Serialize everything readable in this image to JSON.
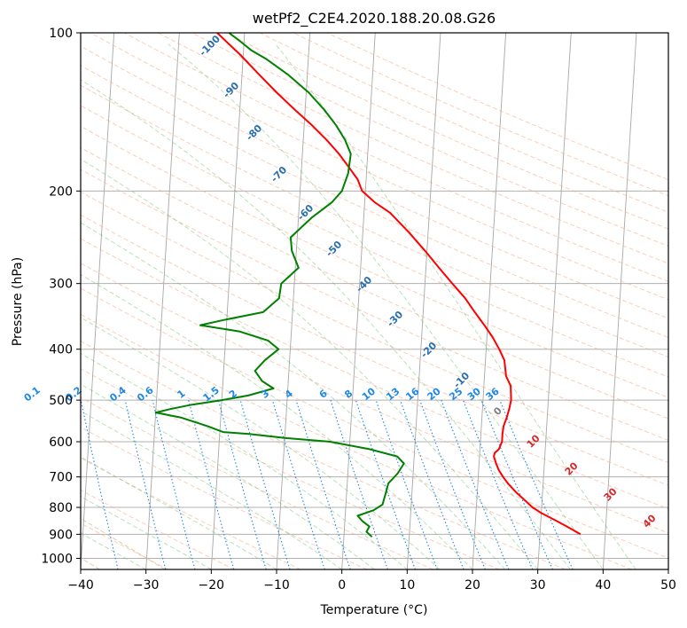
{
  "chart_data": {
    "type": "line",
    "title": "wetPf2_C2E4.2020.188.20.08.G26",
    "xlabel": "Temperature (°C)",
    "ylabel": "Pressure (hPa)",
    "xlim": [
      -40,
      50
    ],
    "ylim": [
      1050,
      100
    ],
    "y_scale": "log",
    "grid": true,
    "x_ticks": [
      -40,
      -30,
      -20,
      -10,
      0,
      10,
      20,
      30,
      40,
      50
    ],
    "y_ticks": [
      100,
      200,
      300,
      400,
      500,
      600,
      700,
      800,
      900,
      1000
    ],
    "x_tick_labels": [
      "−40",
      "−30",
      "−20",
      "−10",
      "0",
      "10",
      "20",
      "30",
      "40",
      "50"
    ],
    "y_tick_labels": [
      "100",
      "200",
      "300",
      "400",
      "500",
      "600",
      "700",
      "800",
      "900",
      "1000"
    ],
    "isotherm_labels": [
      "-100",
      "-90",
      "-80",
      "-70",
      "-60",
      "-50",
      "-40",
      "-30",
      "-20",
      "-10",
      "0",
      "10",
      "20",
      "30",
      "40"
    ],
    "mixing_ratio_labels": [
      "0.1",
      "0.2",
      "0.4",
      "0.6",
      "1",
      "1.5",
      "2",
      "3",
      "4",
      "6",
      "8",
      "10",
      "13",
      "16",
      "20",
      "25",
      "30",
      "36"
    ],
    "series": [
      {
        "color": "#ff0000",
        "points": [
          [
            900,
            36.2
          ],
          [
            880,
            34.8
          ],
          [
            850,
            32.5
          ],
          [
            820,
            30.0
          ],
          [
            800,
            28.6
          ],
          [
            780,
            27.6
          ],
          [
            750,
            26.0
          ],
          [
            720,
            24.6
          ],
          [
            700,
            23.8
          ],
          [
            680,
            23.1
          ],
          [
            660,
            22.6
          ],
          [
            640,
            22.2
          ],
          [
            630,
            22.3
          ],
          [
            620,
            22.9
          ],
          [
            600,
            23.3
          ],
          [
            580,
            23.3
          ],
          [
            560,
            23.4
          ],
          [
            540,
            23.8
          ],
          [
            520,
            24.1
          ],
          [
            500,
            24.3
          ],
          [
            470,
            24.1
          ],
          [
            450,
            23.3
          ],
          [
            420,
            22.9
          ],
          [
            400,
            22.0
          ],
          [
            380,
            20.9
          ],
          [
            360,
            19.5
          ],
          [
            340,
            17.9
          ],
          [
            320,
            16.3
          ],
          [
            300,
            14.2
          ],
          [
            280,
            12.0
          ],
          [
            260,
            9.7
          ],
          [
            240,
            7.1
          ],
          [
            220,
            4.0
          ],
          [
            210,
            1.5
          ],
          [
            200,
            -0.5
          ],
          [
            190,
            -1.3
          ],
          [
            180,
            -2.8
          ],
          [
            170,
            -4.4
          ],
          [
            160,
            -6.4
          ],
          [
            150,
            -8.8
          ],
          [
            140,
            -11.6
          ],
          [
            130,
            -14.5
          ],
          [
            120,
            -17.4
          ],
          [
            110,
            -20.5
          ],
          [
            105,
            -22.3
          ],
          [
            100,
            -24.2
          ]
        ]
      },
      {
        "color": "#008000",
        "points": [
          [
            910,
            4.3
          ],
          [
            890,
            3.4
          ],
          [
            870,
            3.8
          ],
          [
            850,
            2.7
          ],
          [
            830,
            1.9
          ],
          [
            810,
            4.3
          ],
          [
            790,
            5.6
          ],
          [
            770,
            5.8
          ],
          [
            740,
            6.1
          ],
          [
            720,
            6.3
          ],
          [
            690,
            7.6
          ],
          [
            660,
            8.5
          ],
          [
            640,
            7.4
          ],
          [
            620,
            3.1
          ],
          [
            600,
            -3.0
          ],
          [
            590,
            -10.0
          ],
          [
            580,
            -15.5
          ],
          [
            575,
            -19.5
          ],
          [
            560,
            -22.0
          ],
          [
            540,
            -26.0
          ],
          [
            528,
            -30.0
          ],
          [
            520,
            -27.8
          ],
          [
            510,
            -24.5
          ],
          [
            500,
            -20.0
          ],
          [
            490,
            -16.0
          ],
          [
            475,
            -12.2
          ],
          [
            460,
            -14.0
          ],
          [
            440,
            -15.2
          ],
          [
            420,
            -13.8
          ],
          [
            400,
            -11.8
          ],
          [
            385,
            -13.5
          ],
          [
            370,
            -18.0
          ],
          [
            360,
            -24.0
          ],
          [
            352,
            -20.5
          ],
          [
            340,
            -14.5
          ],
          [
            320,
            -12.2
          ],
          [
            300,
            -12.0
          ],
          [
            280,
            -9.5
          ],
          [
            260,
            -10.7
          ],
          [
            245,
            -11.0
          ],
          [
            225,
            -8.0
          ],
          [
            210,
            -5.0
          ],
          [
            200,
            -3.6
          ],
          [
            185,
            -2.8
          ],
          [
            170,
            -2.6
          ],
          [
            160,
            -3.6
          ],
          [
            150,
            -5.1
          ],
          [
            140,
            -7.1
          ],
          [
            130,
            -9.6
          ],
          [
            120,
            -13.0
          ],
          [
            112,
            -16.5
          ],
          [
            108,
            -18.8
          ],
          [
            104,
            -20.5
          ],
          [
            100,
            -22.4
          ]
        ]
      }
    ]
  }
}
